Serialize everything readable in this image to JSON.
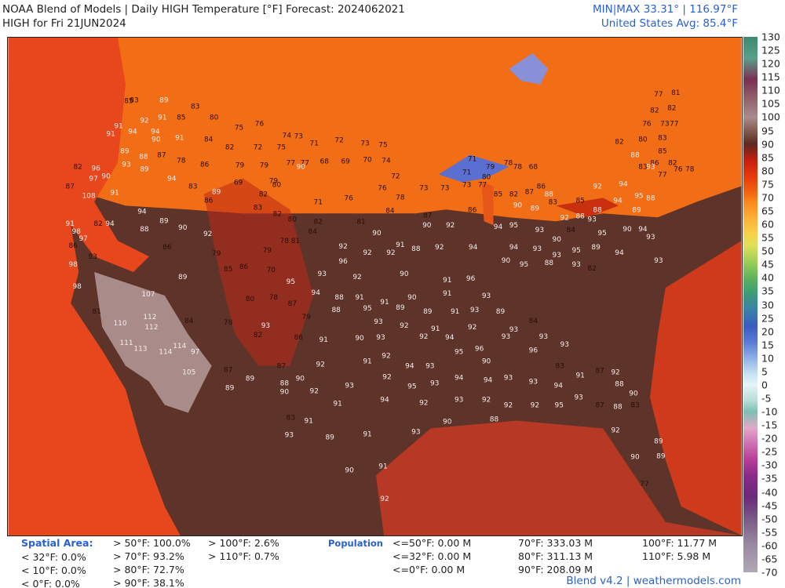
{
  "header": {
    "title": "NOAA Blend of Models | Daily HIGH Temperature [°F] Forecast: 2024062021",
    "subtitle": "HIGH for Fri 21JUN2024",
    "minmax": "MIN|MAX 33.31° | 116.97°F",
    "average": "United States Avg: 85.4°F"
  },
  "colorbar": {
    "labels": [
      130,
      125,
      120,
      115,
      110,
      105,
      100,
      95,
      90,
      85,
      80,
      75,
      70,
      65,
      60,
      55,
      50,
      45,
      40,
      35,
      30,
      25,
      20,
      15,
      10,
      5,
      0,
      -5,
      -10,
      -15,
      -20,
      -25,
      -30,
      -35,
      -40,
      -45,
      -50,
      -55,
      -60,
      -65,
      -70
    ]
  },
  "stations": [
    85,
    83,
    89,
    92,
    91,
    85,
    83,
    80,
    91,
    94,
    94,
    91,
    91,
    89,
    90,
    88,
    87,
    93,
    89,
    78,
    86,
    84,
    82,
    75,
    76,
    72,
    75,
    74,
    73,
    71,
    72,
    73,
    75,
    79,
    79,
    68,
    69,
    70,
    74,
    77,
    77,
    79,
    90,
    82,
    96,
    97,
    90,
    91,
    108,
    87,
    94,
    83,
    89,
    86,
    69,
    82,
    80,
    83,
    82,
    80,
    71,
    76,
    76,
    78,
    72,
    73,
    73,
    94,
    82,
    94,
    91,
    98,
    97,
    86,
    88,
    89,
    90,
    92,
    86,
    83,
    98,
    98,
    81,
    110,
    107,
    112,
    112,
    111,
    113,
    114,
    114,
    97,
    105,
    84,
    89,
    79,
    85,
    86,
    70,
    79,
    78,
    81,
    84,
    82,
    81,
    84,
    87,
    86,
    92,
    90,
    90,
    91,
    92,
    92,
    92,
    88,
    92,
    94,
    96,
    93,
    92,
    90,
    91,
    96,
    95,
    94,
    88,
    91,
    91,
    90,
    91,
    93,
    80,
    78,
    87,
    79,
    88,
    95,
    89,
    89,
    91,
    93,
    89,
    78,
    93,
    93,
    92,
    91,
    92,
    93,
    84,
    82,
    86,
    91,
    90,
    93,
    92,
    94,
    93,
    93,
    93,
    96,
    90,
    92,
    91,
    94,
    93,
    95,
    96,
    83,
    87,
    87,
    92,
    89,
    88,
    90,
    93,
    92,
    95,
    93,
    94,
    94,
    93,
    93,
    94,
    91,
    87,
    92,
    89,
    90,
    92,
    91,
    94,
    92,
    93,
    92,
    92,
    92,
    95,
    93,
    87,
    88,
    90,
    88,
    83,
    83,
    91,
    90,
    88,
    93,
    89,
    91,
    93,
    92,
    90,
    91,
    92,
    90,
    89,
    89,
    77,
    77,
    81,
    82,
    82,
    76,
    73,
    77,
    82,
    80,
    83,
    85,
    86,
    82,
    76,
    78,
    88,
    83,
    93,
    77,
    71,
    79,
    78,
    78,
    68,
    71,
    73,
    77,
    80,
    85,
    82,
    87,
    86,
    88,
    90,
    89,
    83,
    85,
    92,
    94,
    88,
    94,
    95,
    88,
    89,
    88,
    92,
    94,
    95,
    93,
    90,
    84,
    93,
    95,
    90,
    94,
    93,
    94,
    93,
    93,
    95,
    89,
    94,
    93,
    90,
    95,
    88,
    93,
    82
  ],
  "footer": {
    "spatial_title": "Spatial Area:",
    "spatial_low": [
      "< 32°F: 0.0%",
      "< 10°F: 0.0%",
      "< 0°F: 0.0%"
    ],
    "spatial_high": [
      "> 50°F: 100.0%",
      "> 70°F: 93.2%",
      "> 80°F: 72.7%",
      "> 90°F: 38.1%"
    ],
    "spatial_extreme": [
      "> 100°F: 2.6%",
      "> 110°F: 0.7%"
    ],
    "population_title": "Population",
    "population_low": [
      "<=50°F: 0.00 M",
      "<=32°F: 0.00 M",
      "<=0°F: 0.00 M"
    ],
    "population_mid": [
      "70°F: 333.03 M",
      "80°F: 311.13 M",
      "90°F: 208.09 M"
    ],
    "population_high": [
      "100°F: 11.77 M",
      "110°F: 5.98 M"
    ],
    "credit": "Blend v4.2 | weathermodels.com"
  }
}
